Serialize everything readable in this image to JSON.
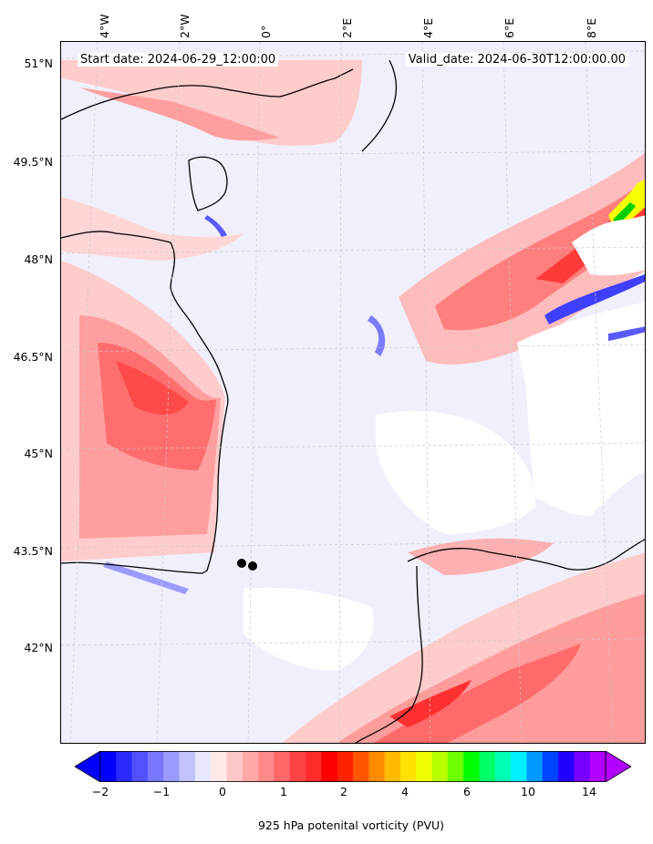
{
  "map": {
    "start_date": "Start date: 2024-06-29_12:00:00",
    "valid_date": "Valid_date: 2024-06-30T12:00:00.00",
    "lat_labels": [
      "51°N",
      "49.5°N",
      "48°N",
      "46.5°N",
      "45°N",
      "43.5°N",
      "42°N"
    ],
    "lon_labels": [
      "4°W",
      "2°W",
      "0°",
      "2°E",
      "4°E",
      "6°E",
      "8°E"
    ],
    "variable": "925 hPa potential vorticity",
    "unit": "PVU",
    "colorbar_title": "925 hPa potenital vorticity (PVU)",
    "colorbar_ticks": [
      "−2",
      "−1",
      "0",
      "1",
      "2",
      "4",
      "6",
      "10",
      "14"
    ],
    "colorbar_colors": [
      "#0000ff",
      "#2a2aff",
      "#5050ff",
      "#7777ff",
      "#9b9bff",
      "#c2c2ff",
      "#e8e8ff",
      "#ffe8e8",
      "#ffc8c8",
      "#ffa8a8",
      "#ff8888",
      "#ff6666",
      "#ff4444",
      "#ff2a2a",
      "#ff0000",
      "#ff2200",
      "#ff5500",
      "#ff8c00",
      "#ffbb00",
      "#ffe100",
      "#f0ff00",
      "#b8ff00",
      "#6cff00",
      "#00ff00",
      "#00ff66",
      "#00ffb3",
      "#00f0ff",
      "#0099ff",
      "#0044ff",
      "#2200ff",
      "#7700ff",
      "#b100ff"
    ],
    "markers": [
      {
        "name": "point-a"
      },
      {
        "name": "point-b"
      }
    ]
  }
}
